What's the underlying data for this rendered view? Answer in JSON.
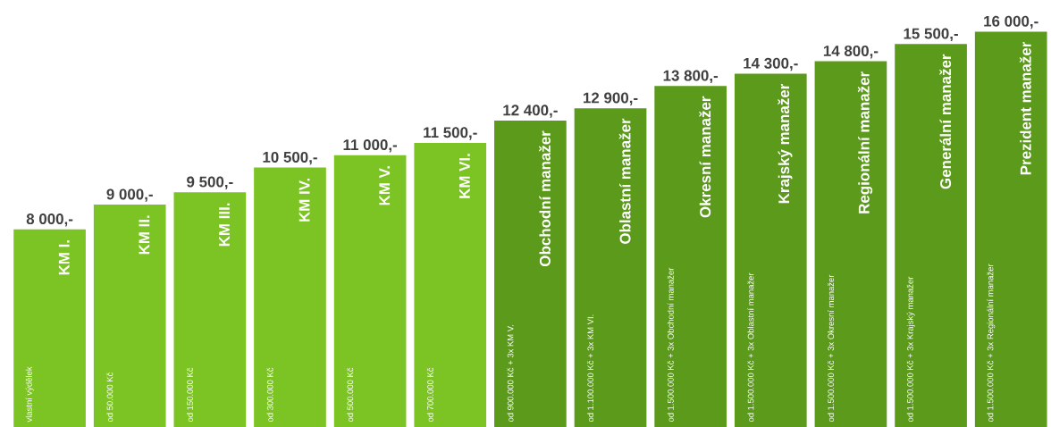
{
  "chart_data": {
    "type": "bar",
    "categories": [
      "KM I.",
      "KM II.",
      "KM III.",
      "KM IV.",
      "KM V.",
      "KM VI.",
      "Obchodní manažer",
      "Oblastní manažer",
      "Okresní manažer",
      "Krajský manažer",
      "Regionální manažer",
      "Generální manažer",
      "Prezident manažer"
    ],
    "values": [
      8000,
      9000,
      9500,
      10500,
      11000,
      11500,
      12400,
      12900,
      13800,
      14300,
      14800,
      15500,
      16000
    ],
    "value_labels": [
      "8 000,-",
      "9 000,-",
      "9 500,-",
      "10 500,-",
      "11 000,-",
      "11 500,-",
      "12 400,-",
      "12 900,-",
      "13 800,-",
      "14 300,-",
      "14 800,-",
      "15 500,-",
      "16 000,-"
    ],
    "colors": [
      "#7cc423",
      "#7cc423",
      "#7cc423",
      "#7cc423",
      "#7cc423",
      "#7cc423",
      "#5c9a1c",
      "#5c9a1c",
      "#5c9a1c",
      "#5c9a1c",
      "#5c9a1c",
      "#5c9a1c",
      "#5c9a1c"
    ],
    "annotations": [
      "vlastní výdělek",
      "od 50.000 Kč",
      "od 150.000 Kč",
      "od 300.000 Kč",
      "od 500.000 Kč",
      "od 700.000 Kč",
      "od 900.000 Kč + 3x KM V.",
      "od 1.100.000 Kč + 3x KM VI.",
      "od 1.500.000 Kč + 3x Obchodní manažer",
      "od 1.500.000 Kč + 3x Oblastní manažer",
      "od 1.500.000 Kč + 3x Okresní manažer",
      "od 1.500.000 Kč + 3x Krajský manažer",
      "od 1.500.000 Kč + 3x Regionální manažer"
    ]
  }
}
